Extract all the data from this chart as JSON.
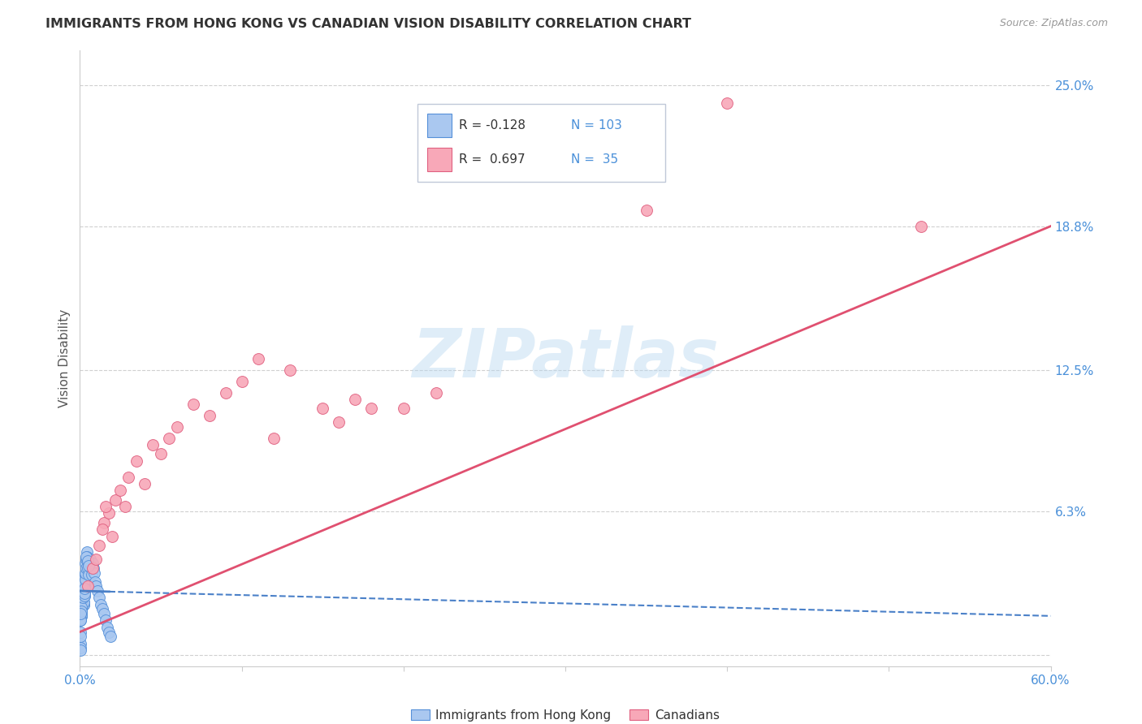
{
  "title": "IMMIGRANTS FROM HONG KONG VS CANADIAN VISION DISABILITY CORRELATION CHART",
  "source": "Source: ZipAtlas.com",
  "ylabel": "Vision Disability",
  "xlim": [
    0.0,
    0.6
  ],
  "ylim": [
    -0.005,
    0.265
  ],
  "yticks": [
    0.0,
    0.063,
    0.125,
    0.188,
    0.25
  ],
  "ytick_labels": [
    "",
    "6.3%",
    "12.5%",
    "18.8%",
    "25.0%"
  ],
  "xticks": [
    0.0,
    0.1,
    0.2,
    0.3,
    0.4,
    0.5,
    0.6
  ],
  "xtick_labels": [
    "0.0%",
    "",
    "",
    "",
    "",
    "",
    "60.0%"
  ],
  "background_color": "#ffffff",
  "grid_color": "#d0d0d0",
  "watermark_text": "ZIPatlas",
  "blue_color": "#aac8f0",
  "blue_edge_color": "#5590d9",
  "blue_line_color": "#4a80c8",
  "pink_color": "#f8a8b8",
  "pink_edge_color": "#e06080",
  "pink_line_color": "#e05070",
  "blue_scatter_x": [
    0.0005,
    0.001,
    0.0008,
    0.0012,
    0.0015,
    0.0006,
    0.0018,
    0.0022,
    0.001,
    0.0008,
    0.0014,
    0.0016,
    0.002,
    0.0009,
    0.0007,
    0.0013,
    0.0011,
    0.0019,
    0.0017,
    0.0021,
    0.0004,
    0.0023,
    0.0025,
    0.0006,
    0.0003,
    0.0024,
    0.0026,
    0.0015,
    0.0018,
    0.0022,
    0.001,
    0.0012,
    0.0008,
    0.0016,
    0.002,
    0.0005,
    0.003,
    0.0028,
    0.0032,
    0.0009,
    0.0007,
    0.0014,
    0.0011,
    0.0019,
    0.0017,
    0.0021,
    0.0004,
    0.0023,
    0.0025,
    0.0006,
    0.0003,
    0.0024,
    0.0026,
    0.0015,
    0.0018,
    0.0022,
    0.001,
    0.0012,
    0.0008,
    0.0016,
    0.002,
    0.0005,
    0.003,
    0.0028,
    0.0032,
    0.0013,
    0.0027,
    0.0031,
    0.0029,
    0.0033,
    0.0035,
    0.0038,
    0.004,
    0.0042,
    0.0045,
    0.005,
    0.0055,
    0.006,
    0.0065,
    0.007,
    0.0075,
    0.008,
    0.0085,
    0.009,
    0.0095,
    0.01,
    0.011,
    0.012,
    0.013,
    0.014,
    0.0002,
    0.0002,
    0.0003,
    0.0003,
    0.015,
    0.016,
    0.017,
    0.0036,
    0.0048,
    0.0052,
    0.0001,
    0.018,
    0.019
  ],
  "blue_scatter_y": [
    0.022,
    0.028,
    0.02,
    0.025,
    0.03,
    0.018,
    0.032,
    0.026,
    0.024,
    0.019,
    0.027,
    0.023,
    0.029,
    0.021,
    0.017,
    0.031,
    0.025,
    0.033,
    0.028,
    0.026,
    0.016,
    0.03,
    0.022,
    0.02,
    0.015,
    0.032,
    0.027,
    0.024,
    0.029,
    0.023,
    0.021,
    0.028,
    0.019,
    0.025,
    0.03,
    0.018,
    0.034,
    0.026,
    0.035,
    0.022,
    0.017,
    0.031,
    0.025,
    0.033,
    0.028,
    0.026,
    0.016,
    0.03,
    0.022,
    0.02,
    0.015,
    0.032,
    0.027,
    0.024,
    0.029,
    0.023,
    0.021,
    0.028,
    0.019,
    0.025,
    0.03,
    0.018,
    0.034,
    0.026,
    0.035,
    0.031,
    0.027,
    0.033,
    0.029,
    0.036,
    0.04,
    0.038,
    0.042,
    0.045,
    0.043,
    0.038,
    0.035,
    0.04,
    0.042,
    0.038,
    0.035,
    0.04,
    0.038,
    0.036,
    0.032,
    0.03,
    0.028,
    0.025,
    0.022,
    0.02,
    0.01,
    0.005,
    0.008,
    0.003,
    0.018,
    0.015,
    0.012,
    0.043,
    0.041,
    0.039,
    0.002,
    0.01,
    0.008
  ],
  "pink_scatter_x": [
    0.005,
    0.008,
    0.01,
    0.012,
    0.015,
    0.018,
    0.02,
    0.022,
    0.025,
    0.028,
    0.03,
    0.035,
    0.04,
    0.045,
    0.05,
    0.055,
    0.06,
    0.07,
    0.08,
    0.09,
    0.1,
    0.11,
    0.12,
    0.13,
    0.15,
    0.16,
    0.17,
    0.18,
    0.2,
    0.22,
    0.35,
    0.52,
    0.4,
    0.014,
    0.016
  ],
  "pink_scatter_y": [
    0.03,
    0.038,
    0.042,
    0.048,
    0.058,
    0.062,
    0.052,
    0.068,
    0.072,
    0.065,
    0.078,
    0.085,
    0.075,
    0.092,
    0.088,
    0.095,
    0.1,
    0.11,
    0.105,
    0.115,
    0.12,
    0.13,
    0.095,
    0.125,
    0.108,
    0.102,
    0.112,
    0.108,
    0.108,
    0.115,
    0.195,
    0.188,
    0.242,
    0.055,
    0.065
  ],
  "blue_trend_x0": 0.0,
  "blue_trend_x1": 0.6,
  "blue_trend_y0": 0.028,
  "blue_trend_y1": 0.017,
  "pink_trend_x0": 0.0,
  "pink_trend_x1": 0.6,
  "pink_trend_y0": 0.01,
  "pink_trend_y1": 0.188
}
